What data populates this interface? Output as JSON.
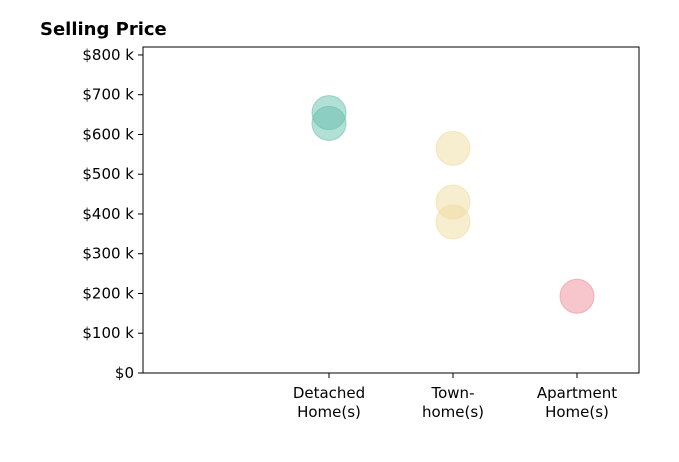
{
  "chart_data": {
    "type": "scatter",
    "title": "Selling Price",
    "xlabel": "",
    "ylabel": "",
    "categories": [
      [
        "Detached",
        "Home(s)"
      ],
      [
        "Town-",
        "home(s)"
      ],
      [
        "Apartment",
        "Home(s)"
      ]
    ],
    "y_ticks": [
      "$0",
      "$100 k",
      "$200 k",
      "$300 k",
      "$400 k",
      "$500 k",
      "$600 k",
      "$700 k",
      "$800 k"
    ],
    "y_tick_values": [
      0,
      100,
      200,
      300,
      400,
      500,
      600,
      700,
      800
    ],
    "ylim": [
      0,
      820
    ],
    "xlim": [
      -0.5,
      3.5
    ],
    "grid": false,
    "series": [
      {
        "category": 0,
        "color": "#66bfae",
        "values": [
          655,
          628
        ]
      },
      {
        "category": 1,
        "color": "#f0dca0",
        "values": [
          565,
          430,
          380
        ]
      },
      {
        "category": 2,
        "color": "#f08c99",
        "values": [
          193
        ]
      }
    ]
  }
}
